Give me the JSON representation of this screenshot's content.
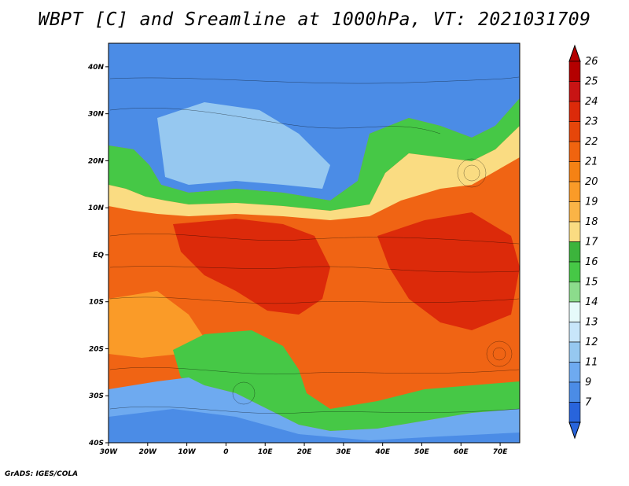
{
  "title": "WBPT [C] and Sreamline at 1000hPa, VT: 2021031709",
  "credit": "GrADS: IGES/COLA",
  "map": {
    "lon_range": [
      -30,
      75
    ],
    "lat_range": [
      -40,
      45
    ],
    "lat_ticks": [
      {
        "value": 40,
        "label": "40N"
      },
      {
        "value": 30,
        "label": "30N"
      },
      {
        "value": 20,
        "label": "20N"
      },
      {
        "value": 10,
        "label": "10N"
      },
      {
        "value": 0,
        "label": "EQ"
      },
      {
        "value": -10,
        "label": "10S"
      },
      {
        "value": -20,
        "label": "20S"
      },
      {
        "value": -30,
        "label": "30S"
      },
      {
        "value": -40,
        "label": "40S"
      }
    ],
    "lon_ticks": [
      {
        "value": -30,
        "label": "30W"
      },
      {
        "value": -20,
        "label": "20W"
      },
      {
        "value": -10,
        "label": "10W"
      },
      {
        "value": 0,
        "label": "0"
      },
      {
        "value": 10,
        "label": "10E"
      },
      {
        "value": 20,
        "label": "20E"
      },
      {
        "value": 30,
        "label": "30E"
      },
      {
        "value": 40,
        "label": "40E"
      },
      {
        "value": 50,
        "label": "50E"
      },
      {
        "value": 60,
        "label": "60E"
      },
      {
        "value": 70,
        "label": "70E"
      }
    ]
  },
  "colorbar": {
    "labels": [
      "26",
      "25",
      "24",
      "23",
      "22",
      "21",
      "20",
      "19",
      "18",
      "17",
      "16",
      "15",
      "14",
      "13",
      "12",
      "11",
      "9",
      "7"
    ],
    "colors": [
      "#b40000",
      "#c81414",
      "#dc2a0a",
      "#e6460a",
      "#f0640f",
      "#f58214",
      "#fa9b28",
      "#fab446",
      "#fadc82",
      "#3cb43c",
      "#46c846",
      "#8cdc8c",
      "#e6fafa",
      "#c8e6fa",
      "#96c8f0",
      "#6eaaf0",
      "#4b8ce6",
      "#2864dc"
    ]
  }
}
